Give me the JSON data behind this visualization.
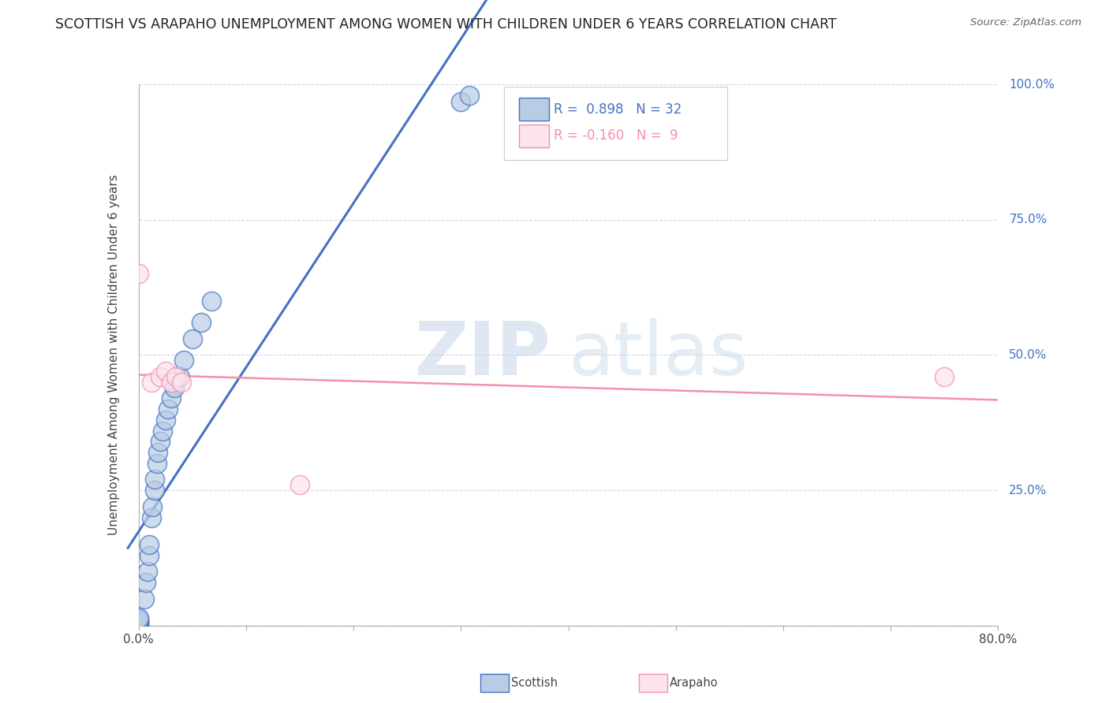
{
  "title": "SCOTTISH VS ARAPAHO UNEMPLOYMENT AMONG WOMEN WITH CHILDREN UNDER 6 YEARS CORRELATION CHART",
  "source": "Source: ZipAtlas.com",
  "ylabel": "Unemployment Among Women with Children Under 6 years",
  "xlim": [
    0.0,
    0.8
  ],
  "ylim": [
    0.0,
    1.0
  ],
  "scottish_color": "#4472c4",
  "scottish_fill": "#b8cce4",
  "arapaho_color": "#f48fb1",
  "arapaho_fill": "#fce4ec",
  "background_color": "#ffffff",
  "grid_color": "#d0d8e8",
  "title_fontsize": 12.5,
  "axis_fontsize": 11,
  "scottish_x": [
    0.0,
    0.0,
    0.0,
    0.0,
    0.0,
    0.0,
    0.0,
    0.0,
    0.005,
    0.007,
    0.008,
    0.01,
    0.01,
    0.012,
    0.013,
    0.015,
    0.015,
    0.017,
    0.018,
    0.02,
    0.022,
    0.025,
    0.027,
    0.03,
    0.033,
    0.038,
    0.042,
    0.05,
    0.058,
    0.068,
    0.3,
    0.308
  ],
  "scottish_y": [
    0.0,
    0.002,
    0.004,
    0.006,
    0.008,
    0.01,
    0.012,
    0.015,
    0.05,
    0.08,
    0.1,
    0.13,
    0.15,
    0.2,
    0.22,
    0.25,
    0.27,
    0.3,
    0.32,
    0.34,
    0.36,
    0.38,
    0.4,
    0.42,
    0.44,
    0.46,
    0.49,
    0.53,
    0.56,
    0.6,
    0.968,
    0.98
  ],
  "arapaho_x": [
    0.0,
    0.012,
    0.02,
    0.025,
    0.03,
    0.035,
    0.04,
    0.15,
    0.75
  ],
  "arapaho_y": [
    0.65,
    0.45,
    0.46,
    0.47,
    0.45,
    0.46,
    0.45,
    0.26,
    0.46
  ],
  "watermark_zip": "ZIP",
  "watermark_atlas": "atlas",
  "legend_r_scottish": "0.898",
  "legend_n_scottish": "32",
  "legend_r_arapaho": "-0.160",
  "legend_n_arapaho": "9"
}
